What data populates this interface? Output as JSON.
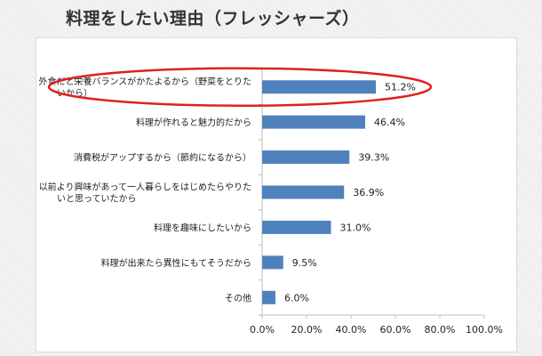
{
  "title": "料理をしたい理由（フレッシャーズ）",
  "colors": {
    "bar": "#4f81bd",
    "highlight": "#e02020",
    "grid": "#bfbfbf",
    "text": "#222222"
  },
  "chart_data": {
    "type": "bar",
    "orientation": "horizontal",
    "categories": [
      [
        "外食だと栄養バランスがかたよるから（野菜をとりた",
        "いから）"
      ],
      [
        "料理が作れると魅力的だから"
      ],
      [
        "消費税がアップするから（節約になるから）"
      ],
      [
        "以前より興味があって一人暮らしをはじめたらやりた",
        "いと思っていたから"
      ],
      [
        "料理を趣味にしたいから"
      ],
      [
        "料理が出来たら異性にもてそうだから"
      ],
      [
        "その他"
      ]
    ],
    "values": [
      51.2,
      46.4,
      39.3,
      36.9,
      31.0,
      9.5,
      6.0
    ],
    "value_labels": [
      "51.2%",
      "46.4%",
      "39.3%",
      "36.9%",
      "31.0%",
      "9.5%",
      "6.0%"
    ],
    "xlim": [
      0,
      100
    ],
    "xticks": [
      "0.0%",
      "20.0%",
      "40.0%",
      "60.0%",
      "80.0%",
      "100.0%"
    ],
    "xtick_values": [
      0,
      20,
      40,
      60,
      80,
      100
    ],
    "grid": false,
    "highlighted_category_index": 0
  }
}
